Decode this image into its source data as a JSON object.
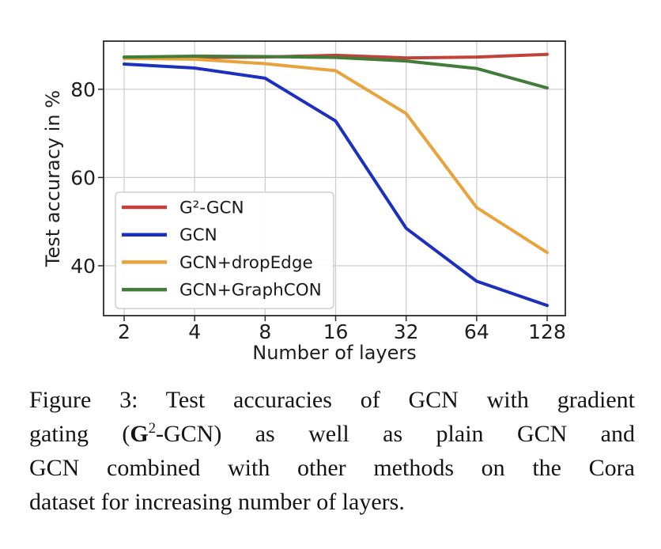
{
  "figure": {
    "caption": {
      "line1": "Figure 3:  Test accuracies of GCN with gradient",
      "line2_pre": "gating (",
      "line2_bold": "G",
      "line2_sup": "2",
      "line2_post": "-GCN) as well as plain GCN and",
      "line3": "GCN combined with other methods on the Cora",
      "line4": "dataset for increasing number of layers."
    }
  },
  "chart_data": {
    "type": "line",
    "title": "",
    "xlabel": "Number of layers",
    "ylabel": "Test accuracy in %",
    "x_scale": "log2",
    "categories": [
      2,
      4,
      8,
      16,
      32,
      64,
      128
    ],
    "yticks": [
      40,
      60,
      80
    ],
    "ylim": [
      28.7,
      90.9
    ],
    "grid": true,
    "legend_position": "lower-left",
    "series": [
      {
        "name": "G²-GCN",
        "color": "#c2423a",
        "values": [
          87.1,
          87.2,
          87.3,
          87.7,
          87.1,
          87.3,
          87.9
        ]
      },
      {
        "name": "GCN",
        "color": "#1c30bd",
        "values": [
          85.7,
          84.8,
          82.5,
          72.8,
          48.5,
          36.5,
          31.0
        ]
      },
      {
        "name": "GCN+dropEdge",
        "color": "#e8a33d",
        "values": [
          87.0,
          86.8,
          85.8,
          84.2,
          74.5,
          53.2,
          43.0
        ]
      },
      {
        "name": "GCN+GraphCON",
        "color": "#417c39",
        "values": [
          87.3,
          87.5,
          87.4,
          87.2,
          86.4,
          84.7,
          80.3
        ]
      }
    ]
  }
}
